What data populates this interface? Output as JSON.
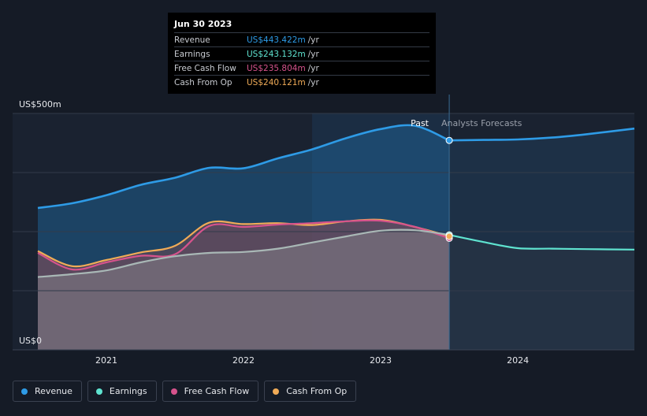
{
  "tooltip": {
    "date": "Jun 30 2023",
    "rows": [
      {
        "label": "Revenue",
        "value": "US$443.422m",
        "unit": "/yr",
        "color": "#2e9be6"
      },
      {
        "label": "Earnings",
        "value": "US$243.132m",
        "unit": "/yr",
        "color": "#5fe3d0"
      },
      {
        "label": "Free Cash Flow",
        "value": "US$235.804m",
        "unit": "/yr",
        "color": "#d6538c"
      },
      {
        "label": "Cash From Op",
        "value": "US$240.121m",
        "unit": "/yr",
        "color": "#f0ab57"
      }
    ]
  },
  "legend": [
    {
      "label": "Revenue",
      "color": "#2e9be6"
    },
    {
      "label": "Earnings",
      "color": "#5fe3d0"
    },
    {
      "label": "Free Cash Flow",
      "color": "#d6538c"
    },
    {
      "label": "Cash From Op",
      "color": "#f0ab57"
    }
  ],
  "chart_data": {
    "type": "area",
    "y_top_label": "US$500m",
    "y_bottom_label": "US$0",
    "ylim": [
      0,
      500
    ],
    "xlim": [
      2020.5,
      2024.85
    ],
    "x_ticks": [
      2021,
      2022,
      2023,
      2024
    ],
    "x_tick_labels": [
      "2021",
      "2022",
      "2023",
      "2024"
    ],
    "past_label": "Past",
    "forecast_label": "Analysts Forecasts",
    "past_end": 2023.5,
    "highlight_start": 2022.5,
    "series": [
      {
        "name": "Revenue",
        "color": "#2e9be6",
        "x": [
          2020.5,
          2020.75,
          2021.0,
          2021.25,
          2021.5,
          2021.75,
          2022.0,
          2022.25,
          2022.5,
          2022.75,
          2023.0,
          2023.25,
          2023.5
        ],
        "y": [
          300,
          310,
          327,
          349,
          364,
          385,
          384,
          405,
          424,
          448,
          467,
          474,
          443
        ],
        "forecast_x": [
          2023.5,
          2023.75,
          2024.0,
          2024.25,
          2024.5,
          2024.85
        ],
        "forecast_y": [
          443,
          444,
          445,
          449,
          456,
          468
        ]
      },
      {
        "name": "Earnings",
        "color": "#5fe3d0",
        "x": [
          2020.5,
          2020.75,
          2021.0,
          2021.25,
          2021.5,
          2021.75,
          2022.0,
          2022.25,
          2022.5,
          2022.75,
          2023.0,
          2023.25,
          2023.5
        ],
        "y": [
          154,
          160,
          168,
          185,
          198,
          205,
          207,
          214,
          227,
          240,
          252,
          253,
          243
        ],
        "forecast_x": [
          2023.5,
          2023.75,
          2024.0,
          2024.25,
          2024.5,
          2024.85
        ],
        "forecast_y": [
          243,
          228,
          215,
          214,
          213,
          212
        ]
      },
      {
        "name": "Free Cash Flow",
        "color": "#d6538c",
        "x": [
          2020.5,
          2020.75,
          2021.0,
          2021.25,
          2021.5,
          2021.75,
          2022.0,
          2022.25,
          2022.5,
          2022.75,
          2023.0,
          2023.25,
          2023.5
        ],
        "y": [
          205,
          170,
          185,
          199,
          202,
          262,
          260,
          265,
          268,
          272,
          273,
          260,
          236
        ]
      },
      {
        "name": "Cash From Op",
        "color": "#f0ab57",
        "x": [
          2020.5,
          2020.75,
          2021.0,
          2021.25,
          2021.5,
          2021.75,
          2022.0,
          2022.25,
          2022.5,
          2022.75,
          2023.0,
          2023.25,
          2023.5
        ],
        "y": [
          209,
          177,
          190,
          206,
          220,
          269,
          266,
          268,
          264,
          272,
          275,
          260,
          240
        ]
      }
    ]
  }
}
